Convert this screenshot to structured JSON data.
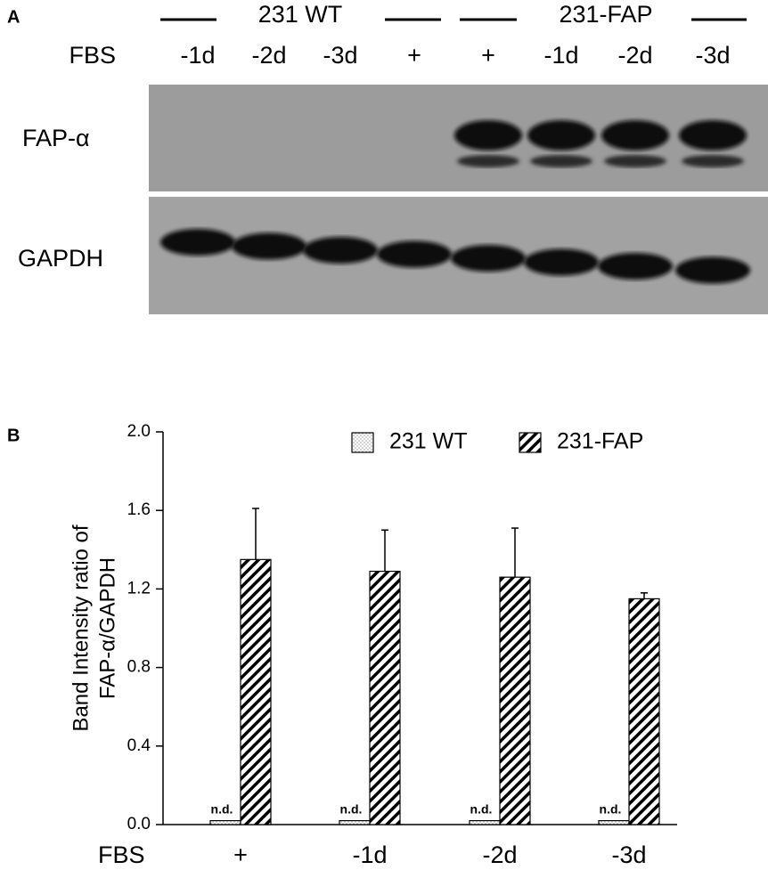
{
  "panel_a": {
    "label": "A",
    "groups": [
      "231 WT",
      "231-FAP"
    ],
    "row_label": "FBS",
    "lanes": [
      "-1d",
      "-2d",
      "-3d",
      "+",
      "+",
      "-1d",
      "-2d",
      "-3d"
    ],
    "blots": [
      "FAP-α",
      "GAPDH"
    ]
  },
  "chart_data": {
    "type": "bar",
    "panel_label": "B",
    "ylabel": [
      "Band Intensity ratio of",
      "FAP-α/GAPDH"
    ],
    "x_row_label": "FBS",
    "categories": [
      "+",
      "-1d",
      "-2d",
      "-3d"
    ],
    "series": [
      {
        "name": "231 WT",
        "color": "#ffffff",
        "pattern": "dots",
        "values": [
          0.02,
          0.02,
          0.02,
          0.02
        ],
        "value_labels": [
          "n.d.",
          "n.d.",
          "n.d.",
          "n.d."
        ]
      },
      {
        "name": "231-FAP",
        "color": "#ffffff",
        "pattern": "hatch",
        "values": [
          1.35,
          1.29,
          1.26,
          1.15
        ],
        "errors": [
          0.26,
          0.21,
          0.25,
          0.03
        ]
      }
    ],
    "ylim": [
      0,
      2
    ],
    "yticks": [
      {
        "value": 0,
        "label": "0.0"
      },
      {
        "value": 0.4,
        "label": "0.4"
      },
      {
        "value": 0.8,
        "label": "0.8"
      },
      {
        "value": 1.2,
        "label": "1.2"
      },
      {
        "value": 1.6,
        "label": "1.6"
      },
      {
        "value": 2,
        "label": "2.0"
      }
    ],
    "legend": "top-right",
    "grid": false
  }
}
